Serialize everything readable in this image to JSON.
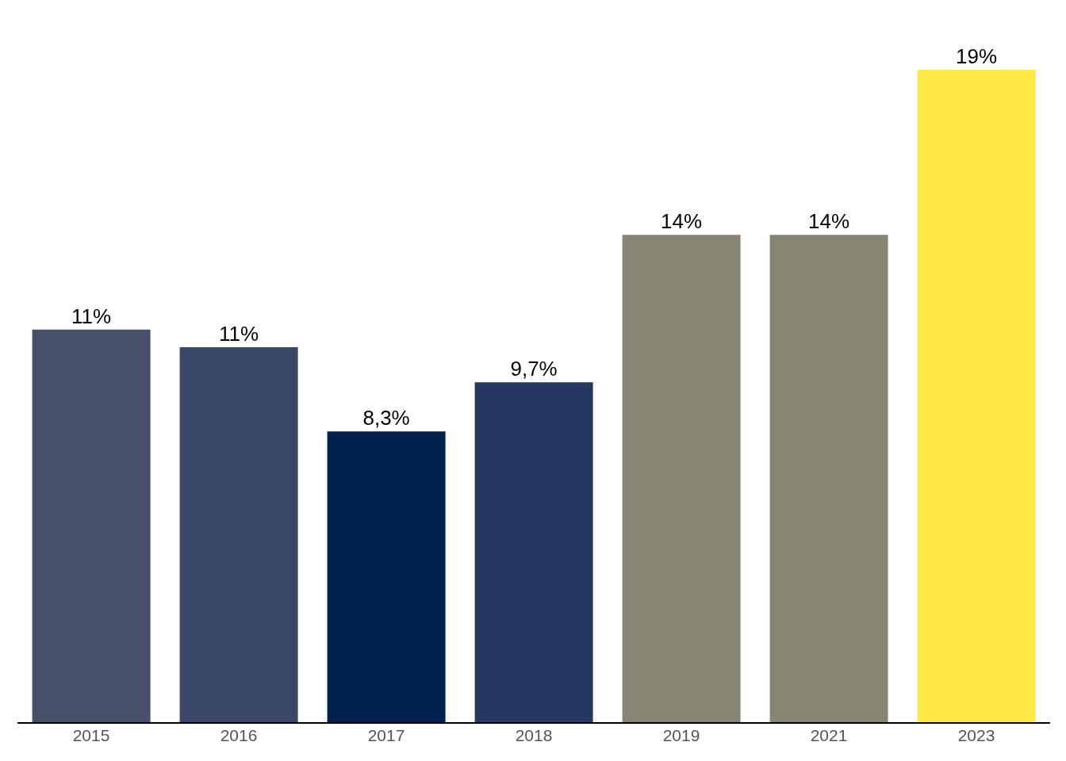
{
  "chart_data": {
    "type": "bar",
    "categories": [
      "2015",
      "2016",
      "2017",
      "2018",
      "2019",
      "2021",
      "2023"
    ],
    "values": [
      11.2,
      10.7,
      8.3,
      9.7,
      13.9,
      13.9,
      18.6
    ],
    "value_labels": [
      "11%",
      "11%",
      "8,3%",
      "9,7%",
      "14%",
      "14%",
      "19%"
    ],
    "colors": [
      "#475069",
      "#3b4868",
      "#00214d",
      "#263862",
      "#898574",
      "#898574",
      "#fee843"
    ],
    "grid": false,
    "legend": false
  }
}
